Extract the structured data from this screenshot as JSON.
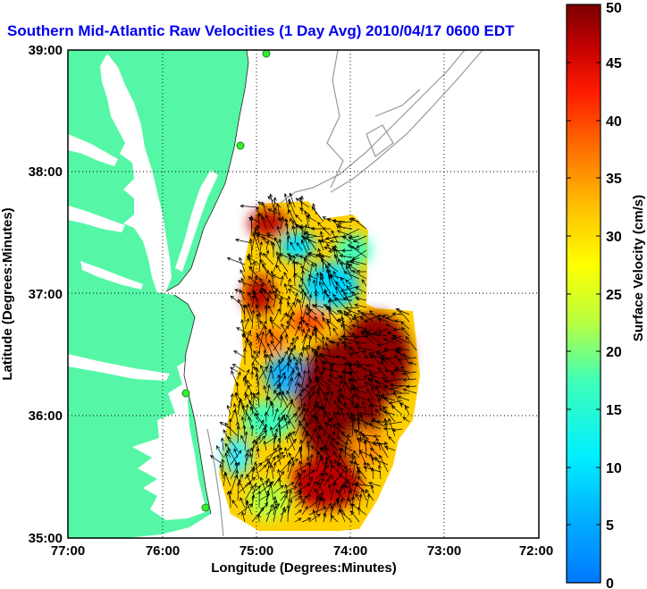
{
  "title": "Southern Mid-Atlantic Raw Velocities (1 Day Avg) 2010/04/17 0600 EDT",
  "x_axis": {
    "label": "Longitude (Degrees:Minutes)",
    "ticks": [
      "77:00",
      "76:00",
      "75:00",
      "74:00",
      "73:00",
      "72:00"
    ]
  },
  "y_axis": {
    "label": "Latitude (Degrees:Minutes)",
    "ticks": [
      "35:00",
      "36:00",
      "37:00",
      "38:00",
      "39:00"
    ]
  },
  "colorbar": {
    "label": "Surface Velocity (cm/s)",
    "ticks": [
      "0",
      "5",
      "10",
      "15",
      "20",
      "25",
      "30",
      "35",
      "40",
      "45",
      "50"
    ],
    "min": 0,
    "max": 50
  },
  "colors": {
    "land": "#55f7a6",
    "ocean": "#ffffff",
    "title": "#0000ee",
    "contour": "#999999"
  },
  "chart_data": {
    "type": "heatmap",
    "title": "Southern Mid-Atlantic Raw Velocities (1 Day Avg) 2010/04/17 0600 EDT",
    "xlabel": "Longitude (Degrees:Minutes)",
    "ylabel": "Latitude (Degrees:Minutes)",
    "xlim": [
      "77:00",
      "72:00"
    ],
    "ylim": [
      "35:00",
      "39:00"
    ],
    "grid": true,
    "colorbar_label": "Surface Velocity (cm/s)",
    "colorbar_range": [
      0,
      50
    ],
    "vector_field": true
  }
}
